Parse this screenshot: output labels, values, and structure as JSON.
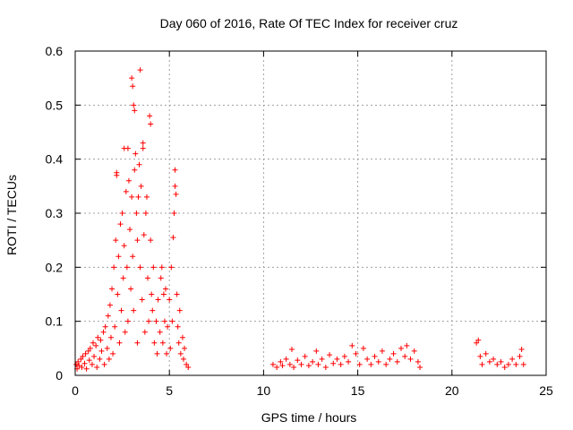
{
  "chart_data": {
    "type": "scatter",
    "title": "Day 060 of 2016, Rate Of TEC Index for receiver cruz",
    "xlabel": "GPS time / hours",
    "ylabel": "ROTI / TECUs",
    "xlim": [
      0,
      25
    ],
    "ylim": [
      0,
      0.6
    ],
    "xticks": [
      "0",
      "5",
      "10",
      "15",
      "20",
      "25"
    ],
    "yticks": [
      "0",
      "0.1",
      "0.2",
      "0.3",
      "0.4",
      "0.5",
      "0.6"
    ],
    "grid": true,
    "marker": "+",
    "color": "#ff0000",
    "series": [
      {
        "name": "ROTI",
        "points": [
          [
            0.05,
            0.02
          ],
          [
            0.1,
            0.012
          ],
          [
            0.15,
            0.025
          ],
          [
            0.2,
            0.018
          ],
          [
            0.3,
            0.03
          ],
          [
            0.35,
            0.015
          ],
          [
            0.4,
            0.035
          ],
          [
            0.5,
            0.022
          ],
          [
            0.55,
            0.04
          ],
          [
            0.6,
            0.012
          ],
          [
            0.7,
            0.045
          ],
          [
            0.75,
            0.028
          ],
          [
            0.8,
            0.05
          ],
          [
            0.9,
            0.02
          ],
          [
            0.95,
            0.06
          ],
          [
            1.0,
            0.035
          ],
          [
            1.1,
            0.055
          ],
          [
            1.15,
            0.015
          ],
          [
            1.2,
            0.07
          ],
          [
            1.3,
            0.03
          ],
          [
            1.35,
            0.065
          ],
          [
            1.4,
            0.045
          ],
          [
            1.5,
            0.08
          ],
          [
            1.55,
            0.02
          ],
          [
            1.6,
            0.09
          ],
          [
            1.7,
            0.05
          ],
          [
            1.75,
            0.11
          ],
          [
            1.8,
            0.03
          ],
          [
            1.85,
            0.13
          ],
          [
            1.9,
            0.07
          ],
          [
            1.95,
            0.16
          ],
          [
            2.0,
            0.04
          ],
          [
            2.05,
            0.2
          ],
          [
            2.1,
            0.09
          ],
          [
            2.15,
            0.25
          ],
          [
            2.2,
            0.375
          ],
          [
            2.2,
            0.37
          ],
          [
            2.25,
            0.15
          ],
          [
            2.3,
            0.22
          ],
          [
            2.35,
            0.06
          ],
          [
            2.4,
            0.28
          ],
          [
            2.45,
            0.12
          ],
          [
            2.5,
            0.3
          ],
          [
            2.55,
            0.18
          ],
          [
            2.6,
            0.42
          ],
          [
            2.6,
            0.24
          ],
          [
            2.65,
            0.08
          ],
          [
            2.7,
            0.34
          ],
          [
            2.75,
            0.2
          ],
          [
            2.8,
            0.42
          ],
          [
            2.8,
            0.1
          ],
          [
            2.85,
            0.36
          ],
          [
            2.9,
            0.27
          ],
          [
            2.95,
            0.16
          ],
          [
            3.0,
            0.55
          ],
          [
            3.0,
            0.33
          ],
          [
            3.05,
            0.535
          ],
          [
            3.05,
            0.22
          ],
          [
            3.1,
            0.5
          ],
          [
            3.1,
            0.12
          ],
          [
            3.15,
            0.49
          ],
          [
            3.15,
            0.38
          ],
          [
            3.2,
            0.41
          ],
          [
            3.25,
            0.3
          ],
          [
            3.3,
            0.25
          ],
          [
            3.3,
            0.06
          ],
          [
            3.35,
            0.33
          ],
          [
            3.4,
            0.39
          ],
          [
            3.45,
            0.565
          ],
          [
            3.45,
            0.2
          ],
          [
            3.5,
            0.35
          ],
          [
            3.55,
            0.14
          ],
          [
            3.6,
            0.43
          ],
          [
            3.6,
            0.42
          ],
          [
            3.65,
            0.26
          ],
          [
            3.7,
            0.08
          ],
          [
            3.75,
            0.3
          ],
          [
            3.8,
            0.33
          ],
          [
            3.85,
            0.18
          ],
          [
            3.9,
            0.1
          ],
          [
            3.95,
            0.48
          ],
          [
            4.0,
            0.465
          ],
          [
            4.0,
            0.25
          ],
          [
            4.05,
            0.15
          ],
          [
            4.1,
            0.12
          ],
          [
            4.15,
            0.2
          ],
          [
            4.2,
            0.06
          ],
          [
            4.3,
            0.1
          ],
          [
            4.35,
            0.04
          ],
          [
            4.4,
            0.14
          ],
          [
            4.5,
            0.08
          ],
          [
            4.55,
            0.18
          ],
          [
            4.6,
            0.2
          ],
          [
            4.65,
            0.06
          ],
          [
            4.7,
            0.15
          ],
          [
            4.75,
            0.1
          ],
          [
            4.8,
            0.16
          ],
          [
            4.85,
            0.04
          ],
          [
            4.9,
            0.09
          ],
          [
            5.0,
            0.14
          ],
          [
            5.05,
            0.05
          ],
          [
            5.1,
            0.2
          ],
          [
            5.15,
            0.1
          ],
          [
            5.2,
            0.255
          ],
          [
            5.25,
            0.3
          ],
          [
            5.3,
            0.38
          ],
          [
            5.3,
            0.35
          ],
          [
            5.35,
            0.335
          ],
          [
            5.4,
            0.15
          ],
          [
            5.45,
            0.09
          ],
          [
            5.5,
            0.06
          ],
          [
            5.55,
            0.12
          ],
          [
            5.6,
            0.04
          ],
          [
            5.7,
            0.07
          ],
          [
            5.75,
            0.03
          ],
          [
            5.8,
            0.05
          ],
          [
            5.9,
            0.02
          ],
          [
            6.0,
            0.015
          ],
          [
            10.5,
            0.02
          ],
          [
            10.7,
            0.015
          ],
          [
            10.9,
            0.025
          ],
          [
            11.0,
            0.018
          ],
          [
            11.2,
            0.03
          ],
          [
            11.4,
            0.02
          ],
          [
            11.5,
            0.048
          ],
          [
            11.6,
            0.015
          ],
          [
            11.8,
            0.028
          ],
          [
            12.0,
            0.02
          ],
          [
            12.2,
            0.035
          ],
          [
            12.4,
            0.018
          ],
          [
            12.6,
            0.025
          ],
          [
            12.8,
            0.045
          ],
          [
            12.9,
            0.02
          ],
          [
            13.1,
            0.03
          ],
          [
            13.3,
            0.015
          ],
          [
            13.5,
            0.038
          ],
          [
            13.7,
            0.022
          ],
          [
            13.9,
            0.03
          ],
          [
            14.1,
            0.02
          ],
          [
            14.3,
            0.035
          ],
          [
            14.5,
            0.025
          ],
          [
            14.7,
            0.055
          ],
          [
            14.9,
            0.04
          ],
          [
            15.1,
            0.02
          ],
          [
            15.3,
            0.05
          ],
          [
            15.5,
            0.03
          ],
          [
            15.7,
            0.02
          ],
          [
            15.9,
            0.035
          ],
          [
            16.1,
            0.025
          ],
          [
            16.3,
            0.045
          ],
          [
            16.5,
            0.02
          ],
          [
            16.7,
            0.03
          ],
          [
            16.9,
            0.04
          ],
          [
            17.1,
            0.025
          ],
          [
            17.3,
            0.05
          ],
          [
            17.5,
            0.035
          ],
          [
            17.6,
            0.055
          ],
          [
            17.8,
            0.03
          ],
          [
            18.0,
            0.045
          ],
          [
            18.2,
            0.025
          ],
          [
            18.3,
            0.015
          ],
          [
            21.3,
            0.06
          ],
          [
            21.4,
            0.065
          ],
          [
            21.5,
            0.035
          ],
          [
            21.6,
            0.02
          ],
          [
            21.8,
            0.04
          ],
          [
            22.0,
            0.025
          ],
          [
            22.2,
            0.03
          ],
          [
            22.4,
            0.02
          ],
          [
            22.6,
            0.025
          ],
          [
            22.8,
            0.015
          ],
          [
            23.0,
            0.02
          ],
          [
            23.2,
            0.03
          ],
          [
            23.4,
            0.02
          ],
          [
            23.6,
            0.035
          ],
          [
            23.7,
            0.048
          ],
          [
            23.8,
            0.02
          ]
        ]
      }
    ]
  }
}
